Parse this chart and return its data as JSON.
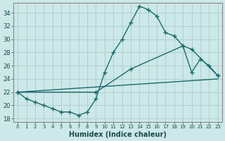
{
  "xlabel": "Humidex (Indice chaleur)",
  "xlim": [
    -0.5,
    23.5
  ],
  "ylim": [
    17.5,
    35.5
  ],
  "xticks": [
    0,
    1,
    2,
    3,
    4,
    5,
    6,
    7,
    8,
    9,
    10,
    11,
    12,
    13,
    14,
    15,
    16,
    17,
    18,
    19,
    20,
    21,
    22,
    23
  ],
  "yticks": [
    18,
    20,
    22,
    24,
    26,
    28,
    30,
    32,
    34
  ],
  "bg_color": "#cce8e8",
  "line_color": "#1a6b6b",
  "grid_color": "#b0d0d0",
  "lines": [
    {
      "x": [
        0,
        1,
        2,
        3,
        4,
        5,
        6,
        7,
        8,
        9,
        10,
        11,
        12,
        13,
        14,
        15,
        16,
        17,
        18,
        19,
        20,
        21,
        22,
        23
      ],
      "y": [
        22,
        21,
        20.5,
        20,
        19.5,
        19,
        19,
        18.5,
        19,
        21,
        25,
        28,
        30,
        32.5,
        35,
        34.5,
        33.5,
        31,
        30.5,
        29,
        25,
        27,
        26,
        24.5
      ]
    },
    {
      "x": [
        0,
        9,
        13,
        19,
        20,
        23
      ],
      "y": [
        22,
        22,
        25.5,
        29,
        28.5,
        24.5
      ]
    },
    {
      "x": [
        0,
        23
      ],
      "y": [
        22,
        24
      ]
    }
  ]
}
